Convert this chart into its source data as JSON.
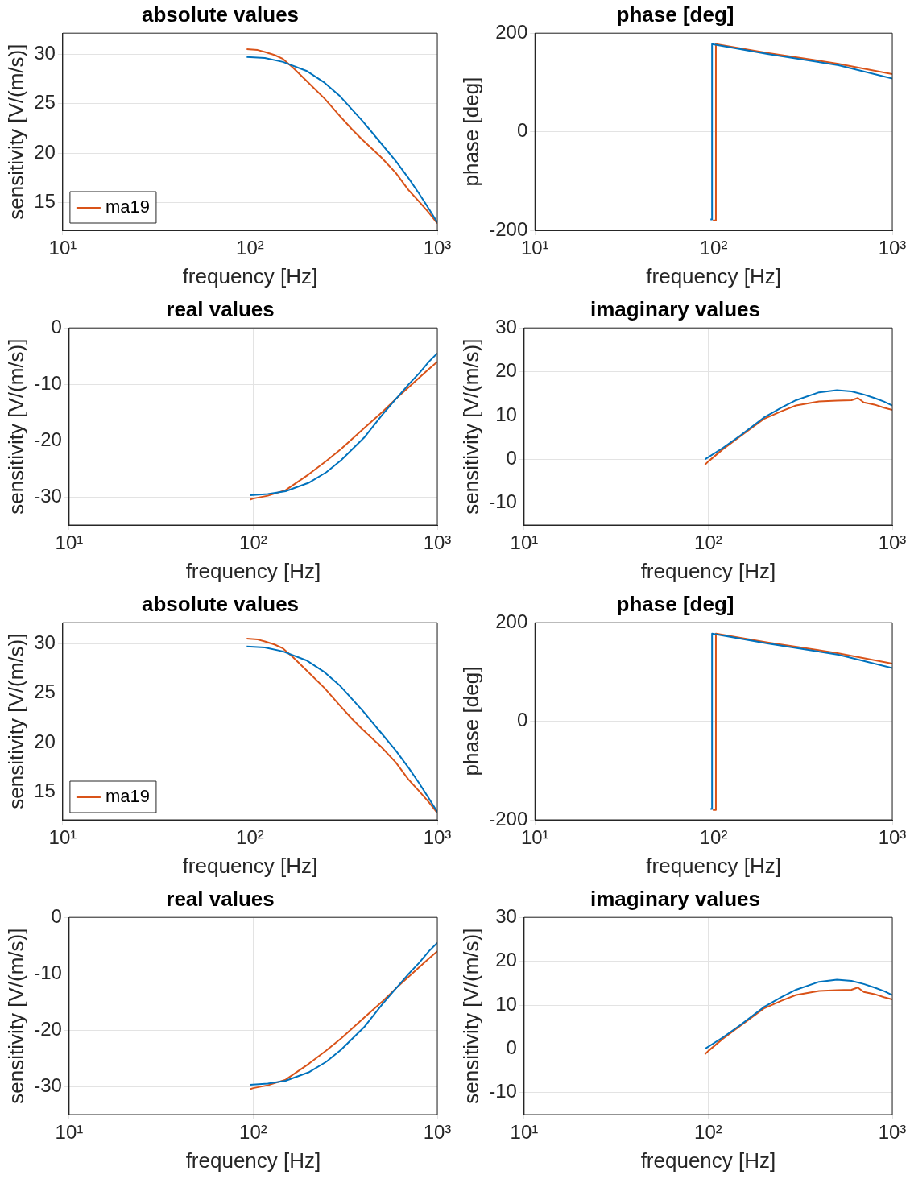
{
  "chart_data": [
    {
      "type": "line",
      "title": "absolute values",
      "xlabel": "frequency [Hz]",
      "ylabel": "sensitivity [V/(m/s)]",
      "log": "x",
      "xlim": [
        10,
        1000
      ],
      "xticks": [
        {
          "value": 10,
          "label": "10¹"
        },
        {
          "value": 100,
          "label": "10²"
        },
        {
          "value": 1000,
          "label": "10³"
        }
      ],
      "ylim": [
        12.2,
        32.1
      ],
      "yticks": [
        15,
        20,
        25,
        30
      ],
      "grid": true,
      "legend": "bottom left",
      "series": [
        {
          "color": "#0072bd",
          "x": [
            96,
            120,
            150,
            200,
            250,
            300,
            400,
            500,
            600,
            700,
            800,
            900,
            1000
          ],
          "values": [
            29.7,
            29.6,
            29.2,
            28.3,
            27.1,
            25.8,
            23.2,
            21.0,
            19.2,
            17.5,
            15.9,
            14.4,
            13.0
          ]
        },
        {
          "name": "ma19",
          "color": "#d95319",
          "x": [
            96,
            110,
            120,
            135,
            150,
            170,
            200,
            250,
            300,
            350,
            400,
            500,
            600,
            700,
            800,
            900,
            1000
          ],
          "values": [
            30.5,
            30.4,
            30.2,
            29.9,
            29.5,
            28.6,
            27.3,
            25.5,
            23.8,
            22.4,
            21.3,
            19.6,
            18.0,
            16.3,
            15.1,
            14.0,
            12.9
          ]
        }
      ]
    },
    {
      "type": "line",
      "title": "phase [deg]",
      "xlabel": "frequency [Hz]",
      "ylabel": "phase [deg]",
      "log": "x",
      "xlim": [
        10,
        1000
      ],
      "xticks": [
        {
          "value": 10,
          "label": "10¹"
        },
        {
          "value": 100,
          "label": "10²"
        },
        {
          "value": 1000,
          "label": "10³"
        }
      ],
      "ylim": [
        -200,
        200
      ],
      "yticks": [
        -200,
        0,
        200
      ],
      "grid": true,
      "series": [
        {
          "color": "#0072bd",
          "x": [
            96,
            98,
            98,
            200,
            500,
            1000
          ],
          "values": [
            -178,
            -178,
            178,
            158,
            135,
            108
          ]
        },
        {
          "color": "#d95319",
          "x": [
            99,
            103,
            103,
            200,
            500,
            1000
          ],
          "values": [
            -180,
            -180,
            178,
            160,
            138,
            117
          ]
        }
      ]
    },
    {
      "type": "line",
      "title": "real values",
      "xlabel": "frequency [Hz]",
      "ylabel": "sensitivity [V/(m/s)]",
      "log": "x",
      "xlim": [
        10,
        1000
      ],
      "xticks": [
        {
          "value": 10,
          "label": "10¹"
        },
        {
          "value": 100,
          "label": "10²"
        },
        {
          "value": 1000,
          "label": "10³"
        }
      ],
      "ylim": [
        -35,
        0
      ],
      "yticks": [
        -30,
        -20,
        -10,
        0
      ],
      "grid": true,
      "series": [
        {
          "color": "#0072bd",
          "x": [
            96,
            120,
            150,
            200,
            250,
            300,
            400,
            500,
            600,
            700,
            800,
            900,
            1000
          ],
          "values": [
            -29.7,
            -29.5,
            -29.0,
            -27.5,
            -25.6,
            -23.5,
            -19.5,
            -15.5,
            -12.5,
            -10.0,
            -8.0,
            -6.0,
            -4.5
          ]
        },
        {
          "color": "#d95319",
          "x": [
            96,
            100,
            120,
            150,
            200,
            250,
            300,
            400,
            500,
            600,
            700,
            800,
            900,
            1000
          ],
          "values": [
            -30.5,
            -30.3,
            -29.8,
            -28.8,
            -26.0,
            -23.6,
            -21.5,
            -17.8,
            -15.0,
            -12.5,
            -10.5,
            -8.8,
            -7.3,
            -6.0
          ]
        }
      ]
    },
    {
      "type": "line",
      "title": "imaginary values",
      "xlabel": "frequency [Hz]",
      "ylabel": "sensitivity [V/(m/s)]",
      "log": "x",
      "xlim": [
        10,
        1000
      ],
      "xticks": [
        {
          "value": 10,
          "label": "10¹"
        },
        {
          "value": 100,
          "label": "10²"
        },
        {
          "value": 1000,
          "label": "10³"
        }
      ],
      "ylim": [
        -15,
        30
      ],
      "yticks": [
        -10,
        0,
        10,
        20,
        30
      ],
      "grid": true,
      "series": [
        {
          "color": "#0072bd",
          "x": [
            96,
            120,
            150,
            200,
            250,
            300,
            400,
            500,
            600,
            700,
            800,
            900,
            1000
          ],
          "values": [
            0,
            2.6,
            5.5,
            9.5,
            11.8,
            13.5,
            15.3,
            15.8,
            15.5,
            14.8,
            14.0,
            13.2,
            12.3
          ]
        },
        {
          "color": "#d95319",
          "x": [
            96,
            100,
            120,
            150,
            200,
            250,
            300,
            400,
            500,
            600,
            650,
            700,
            800,
            900,
            1000
          ],
          "values": [
            -1.2,
            -0.5,
            2.3,
            5.3,
            9.2,
            11.0,
            12.3,
            13.2,
            13.4,
            13.5,
            14.0,
            13.0,
            12.5,
            11.8,
            11.3
          ]
        }
      ]
    },
    {
      "type": "line",
      "title": "absolute values",
      "xlabel": "frequency [Hz]",
      "ylabel": "sensitivity [V/(m/s)]",
      "log": "x",
      "xlim": [
        10,
        1000
      ],
      "xticks": [
        {
          "value": 10,
          "label": "10¹"
        },
        {
          "value": 100,
          "label": "10²"
        },
        {
          "value": 1000,
          "label": "10³"
        }
      ],
      "ylim": [
        12.2,
        32.1
      ],
      "yticks": [
        15,
        20,
        25,
        30
      ],
      "grid": true,
      "legend": "bottom left",
      "series": [
        {
          "color": "#0072bd",
          "x": [
            96,
            120,
            150,
            200,
            250,
            300,
            400,
            500,
            600,
            700,
            800,
            900,
            1000
          ],
          "values": [
            29.7,
            29.6,
            29.2,
            28.3,
            27.1,
            25.8,
            23.2,
            21.0,
            19.2,
            17.5,
            15.9,
            14.4,
            13.0
          ]
        },
        {
          "name": "ma19",
          "color": "#d95319",
          "x": [
            96,
            110,
            120,
            135,
            150,
            170,
            200,
            250,
            300,
            350,
            400,
            500,
            600,
            700,
            800,
            900,
            1000
          ],
          "values": [
            30.5,
            30.4,
            30.2,
            29.9,
            29.5,
            28.6,
            27.3,
            25.5,
            23.8,
            22.4,
            21.3,
            19.6,
            18.0,
            16.3,
            15.1,
            14.0,
            12.9
          ]
        }
      ]
    },
    {
      "type": "line",
      "title": "phase [deg]",
      "xlabel": "frequency [Hz]",
      "ylabel": "phase [deg]",
      "log": "x",
      "xlim": [
        10,
        1000
      ],
      "xticks": [
        {
          "value": 10,
          "label": "10¹"
        },
        {
          "value": 100,
          "label": "10²"
        },
        {
          "value": 1000,
          "label": "10³"
        }
      ],
      "ylim": [
        -200,
        200
      ],
      "yticks": [
        -200,
        0,
        200
      ],
      "grid": true,
      "series": [
        {
          "color": "#0072bd",
          "x": [
            96,
            98,
            98,
            200,
            500,
            1000
          ],
          "values": [
            -178,
            -178,
            178,
            158,
            135,
            108
          ]
        },
        {
          "color": "#d95319",
          "x": [
            99,
            103,
            103,
            200,
            500,
            1000
          ],
          "values": [
            -180,
            -180,
            178,
            160,
            138,
            117
          ]
        }
      ]
    },
    {
      "type": "line",
      "title": "real values",
      "xlabel": "frequency [Hz]",
      "ylabel": "sensitivity [V/(m/s)]",
      "log": "x",
      "xlim": [
        10,
        1000
      ],
      "xticks": [
        {
          "value": 10,
          "label": "10¹"
        },
        {
          "value": 100,
          "label": "10²"
        },
        {
          "value": 1000,
          "label": "10³"
        }
      ],
      "ylim": [
        -35,
        0
      ],
      "yticks": [
        -30,
        -20,
        -10,
        0
      ],
      "grid": true,
      "series": [
        {
          "color": "#0072bd",
          "x": [
            96,
            120,
            150,
            200,
            250,
            300,
            400,
            500,
            600,
            700,
            800,
            900,
            1000
          ],
          "values": [
            -29.7,
            -29.5,
            -29.0,
            -27.5,
            -25.6,
            -23.5,
            -19.5,
            -15.5,
            -12.5,
            -10.0,
            -8.0,
            -6.0,
            -4.5
          ]
        },
        {
          "color": "#d95319",
          "x": [
            96,
            100,
            120,
            150,
            200,
            250,
            300,
            400,
            500,
            600,
            700,
            800,
            900,
            1000
          ],
          "values": [
            -30.5,
            -30.3,
            -29.8,
            -28.8,
            -26.0,
            -23.6,
            -21.5,
            -17.8,
            -15.0,
            -12.5,
            -10.5,
            -8.8,
            -7.3,
            -6.0
          ]
        }
      ]
    },
    {
      "type": "line",
      "title": "imaginary values",
      "xlabel": "frequency [Hz]",
      "ylabel": "sensitivity [V/(m/s)]",
      "log": "x",
      "xlim": [
        10,
        1000
      ],
      "xticks": [
        {
          "value": 10,
          "label": "10¹"
        },
        {
          "value": 100,
          "label": "10²"
        },
        {
          "value": 1000,
          "label": "10³"
        }
      ],
      "ylim": [
        -15,
        30
      ],
      "yticks": [
        -10,
        0,
        10,
        20,
        30
      ],
      "grid": true,
      "series": [
        {
          "color": "#0072bd",
          "x": [
            96,
            120,
            150,
            200,
            250,
            300,
            400,
            500,
            600,
            700,
            800,
            900,
            1000
          ],
          "values": [
            0,
            2.6,
            5.5,
            9.5,
            11.8,
            13.5,
            15.3,
            15.8,
            15.5,
            14.8,
            14.0,
            13.2,
            12.3
          ]
        },
        {
          "color": "#d95319",
          "x": [
            96,
            100,
            120,
            150,
            200,
            250,
            300,
            400,
            500,
            600,
            650,
            700,
            800,
            900,
            1000
          ],
          "values": [
            -1.2,
            -0.5,
            2.3,
            5.3,
            9.2,
            11.0,
            12.3,
            13.2,
            13.4,
            13.5,
            14.0,
            13.0,
            12.5,
            11.8,
            11.3
          ]
        }
      ]
    }
  ]
}
